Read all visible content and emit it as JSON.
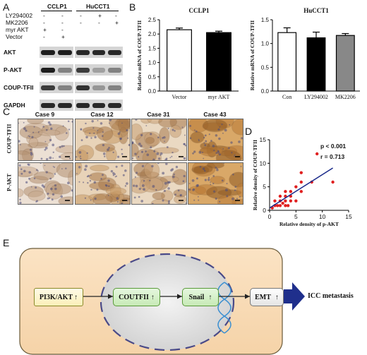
{
  "panels": {
    "A": "A",
    "B": "B",
    "C": "C",
    "D": "D",
    "E": "E"
  },
  "panel_a": {
    "cell_lines": [
      "CCLP1",
      "HuCCT1"
    ],
    "treatments": [
      {
        "label": "LY294002",
        "marks": [
          "-",
          "-",
          "-",
          "+",
          "-"
        ]
      },
      {
        "label": "MK2206",
        "marks": [
          "-",
          "-",
          "-",
          "-",
          "+"
        ]
      },
      {
        "label": "myr AKT",
        "marks": [
          "+",
          "-",
          "",
          "",
          ""
        ]
      },
      {
        "label": "Vector",
        "marks": [
          "-",
          "+",
          "",
          "",
          ""
        ]
      }
    ],
    "blots": [
      "AKT",
      "P-AKT",
      "COUP-TFII",
      "GAPDH"
    ]
  },
  "panel_b_left": {
    "chart_data": {
      "type": "bar",
      "title": "CCLP1",
      "ylabel": "Relative mRNA of COUP-TFII",
      "categories": [
        "Vector",
        "myr AKT"
      ],
      "values": [
        2.15,
        2.05
      ],
      "errors": [
        0.06,
        0.05
      ],
      "ylim": [
        0,
        2.5
      ],
      "yticks": [
        "0.0",
        "0.5",
        "1.0",
        "1.5",
        "2.0",
        "2.5"
      ],
      "colors": [
        "#ffffff",
        "#000000"
      ]
    }
  },
  "panel_b_right": {
    "chart_data": {
      "type": "bar",
      "title": "HuCCT1",
      "ylabel": "Relative mRNA of COUP-TFII",
      "categories": [
        "Con",
        "LY294002",
        "MK2206"
      ],
      "values": [
        1.23,
        1.12,
        1.17
      ],
      "errors": [
        0.1,
        0.12,
        0.04
      ],
      "ylim": [
        0,
        1.5
      ],
      "yticks": [
        "0.0",
        "0.5",
        "1.0",
        "1.5"
      ],
      "colors": [
        "#ffffff",
        "#000000",
        "#888888"
      ]
    }
  },
  "panel_c": {
    "cases": [
      "Case 9",
      "Case 12",
      "Case 31",
      "Case 43"
    ],
    "rows": [
      "COUP-TFII",
      "P-AKT"
    ]
  },
  "panel_d": {
    "chart_data": {
      "type": "scatter",
      "xlabel": "Relative density of p-AKT",
      "ylabel": "Relative density of COUP-TFII",
      "xlim": [
        0,
        15
      ],
      "ylim": [
        0,
        15
      ],
      "xticks": [
        "0",
        "5",
        "10",
        "15"
      ],
      "yticks": [
        "0",
        "5",
        "10",
        "15"
      ],
      "annotations": [
        "p < 0.001",
        "r = 0.713"
      ],
      "points": [
        [
          0.5,
          0.5
        ],
        [
          1,
          1
        ],
        [
          1,
          2
        ],
        [
          1.5,
          1
        ],
        [
          2,
          1
        ],
        [
          2,
          2
        ],
        [
          2,
          3
        ],
        [
          2.5,
          1.5
        ],
        [
          3,
          1
        ],
        [
          3,
          2
        ],
        [
          3,
          3
        ],
        [
          3,
          4
        ],
        [
          3.5,
          1
        ],
        [
          4,
          2
        ],
        [
          4,
          3
        ],
        [
          4,
          4
        ],
        [
          5,
          2
        ],
        [
          5,
          5
        ],
        [
          6,
          4
        ],
        [
          6,
          6
        ],
        [
          6,
          8
        ],
        [
          8,
          6
        ],
        [
          9,
          12
        ],
        [
          12,
          6
        ]
      ],
      "fit": [
        [
          0,
          0.5
        ],
        [
          12,
          9
        ]
      ],
      "point_color": "#e02020",
      "line_color": "#1a2a8a"
    }
  },
  "panel_e": {
    "nodes": [
      "PI3K/AKT",
      "COUTFII",
      "Snail",
      "EMT"
    ],
    "arrow_up": "↑",
    "outcome": "ICC metastasis"
  }
}
